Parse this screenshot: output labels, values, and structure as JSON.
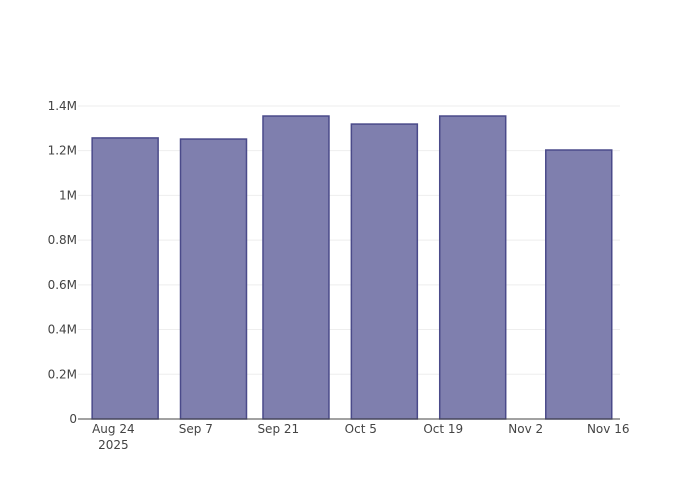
{
  "chart_data": {
    "type": "bar",
    "x": [
      "2025-08-26",
      "2025-09-10",
      "2025-09-24",
      "2025-10-09",
      "2025-10-24",
      "2025-11-11"
    ],
    "values": [
      1257000,
      1252000,
      1355000,
      1319000,
      1355000,
      1203000
    ],
    "color": "#7f7fae",
    "edge_color": "#4a4a8a",
    "xlim": [
      "2025-08-18",
      "2025-11-18"
    ],
    "xticks": [
      {
        "value": "2025-08-24",
        "label": "Aug 24\n2025"
      },
      {
        "value": "2025-09-07",
        "label": "Sep 7"
      },
      {
        "value": "2025-09-21",
        "label": "Sep 21"
      },
      {
        "value": "2025-10-05",
        "label": "Oct 5"
      },
      {
        "value": "2025-10-19",
        "label": "Oct 19"
      },
      {
        "value": "2025-11-02",
        "label": "Nov 2"
      },
      {
        "value": "2025-11-16",
        "label": "Nov 16"
      }
    ],
    "ylim": [
      0,
      1422600
    ],
    "yticks": [
      0,
      {
        "value": 200000,
        "label": "0.2M"
      },
      {
        "value": 400000,
        "label": "0.4M"
      },
      {
        "value": 600000,
        "label": "0.6M"
      },
      {
        "value": 800000,
        "label": "0.8M"
      },
      {
        "value": 1000000,
        "label": "1M"
      },
      {
        "value": 1200000,
        "label": "1.2M"
      },
      {
        "value": 1400000,
        "label": "1.4M"
      }
    ],
    "grid": true
  }
}
